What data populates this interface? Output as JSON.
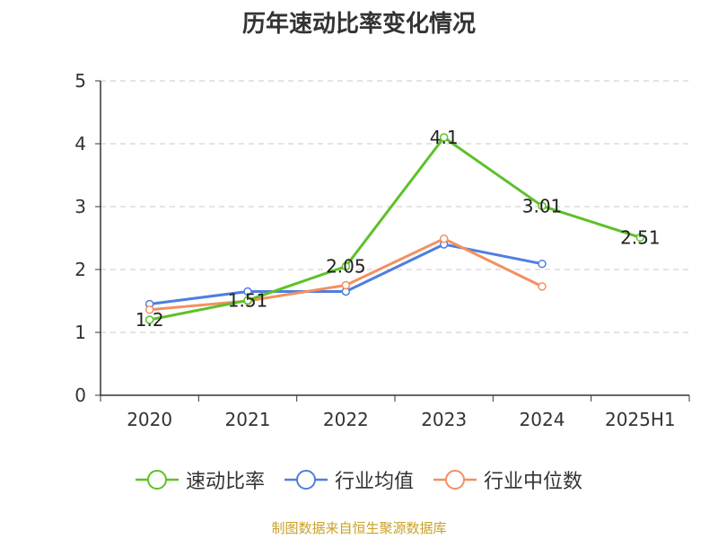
{
  "title": "历年速动比率变化情况",
  "source": "制图数据来自恒生聚源数据库",
  "chart_data": {
    "type": "line",
    "title": "历年速动比率变化情况",
    "categories": [
      "2020",
      "2021",
      "2022",
      "2023",
      "2024",
      "2025H1"
    ],
    "ylim": [
      0,
      5
    ],
    "yticks": [
      0,
      1,
      2,
      3,
      4,
      5
    ],
    "grid": true,
    "legend": "bottom",
    "series": [
      {
        "name": "速动比率",
        "color": "#5cc128",
        "values": [
          1.2,
          1.51,
          2.05,
          4.1,
          3.01,
          2.51
        ],
        "labels": [
          "1.2",
          "1.51",
          "2.05",
          "4.1",
          "3.01",
          "2.51"
        ]
      },
      {
        "name": "行业均值",
        "color": "#4f7ede",
        "values": [
          1.45,
          1.65,
          1.65,
          2.4,
          2.09,
          null
        ]
      },
      {
        "name": "行业中位数",
        "color": "#f39060",
        "values": [
          1.36,
          1.5,
          1.75,
          2.49,
          1.73,
          null
        ]
      }
    ]
  }
}
